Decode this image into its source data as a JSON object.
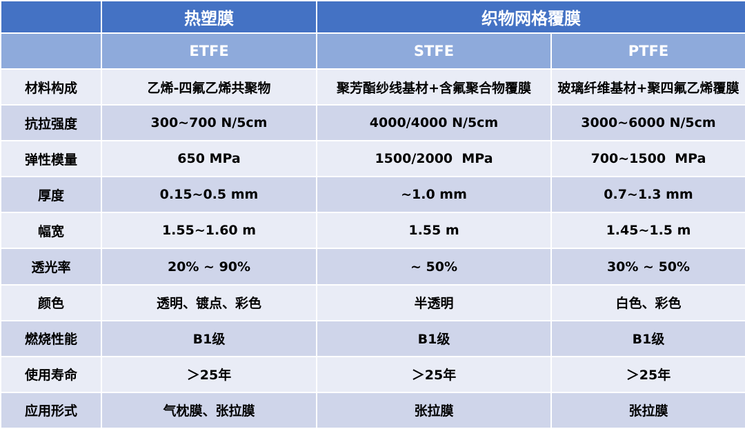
{
  "header": {
    "group_hot": "热塑膜",
    "group_fabric": "织物网格覆膜",
    "col_etfe": "ETFE",
    "col_stfe": "STFE",
    "col_ptfe": "PTFE"
  },
  "rows": [
    {
      "label": "材料构成",
      "etfe": "乙烯-四氟乙烯共聚物",
      "stfe": "聚芳酯纱线基材+含氟聚合物覆膜",
      "ptfe": "玻璃纤维基材+聚四氟乙烯覆膜"
    },
    {
      "label": "抗拉强度",
      "etfe": "300~700 N/5cm",
      "stfe": "4000/4000 N/5cm",
      "ptfe": "3000~6000 N/5cm"
    },
    {
      "label": "弹性模量",
      "etfe": "650 MPa",
      "stfe": "1500/2000  MPa",
      "ptfe": "700~1500  MPa"
    },
    {
      "label": "厚度",
      "etfe": "0.15~0.5 mm",
      "stfe": "~1.0 mm",
      "ptfe": "0.7~1.3 mm"
    },
    {
      "label": "幅宽",
      "etfe": "1.55~1.60 m",
      "stfe": "1.55 m",
      "ptfe": "1.45~1.5 m"
    },
    {
      "label": "透光率",
      "etfe": "20% ~ 90%",
      "stfe": "~ 50%",
      "ptfe": "30% ~ 50%"
    },
    {
      "label": "颜色",
      "etfe": "透明、镀点、彩色",
      "stfe": "半透明",
      "ptfe": "白色、彩色"
    },
    {
      "label": "燃烧性能",
      "etfe": "B1级",
      "stfe": "B1级",
      "ptfe": "B1级"
    },
    {
      "label": "使用寿命",
      "etfe": "＞25年",
      "stfe": "＞25年",
      "ptfe": "＞25年"
    },
    {
      "label": "应用形式",
      "etfe": "气枕膜、张拉膜",
      "stfe": "张拉膜",
      "ptfe": "张拉膜"
    }
  ]
}
